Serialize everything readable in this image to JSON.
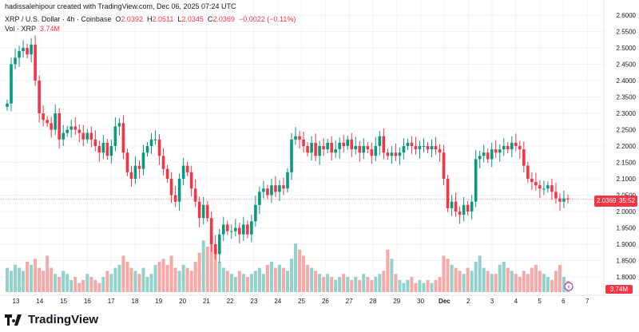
{
  "watermark": "hadissalehipour created with TradingView.com, Dec 06, 2025 07:24 UTC",
  "legend": {
    "symbol": "XRP / U.S. Dollar · 4h · Coinbase",
    "o_label": "O",
    "o": "2.0392",
    "h_label": "H",
    "h": "2.0511",
    "l_label": "L",
    "l": "2.0345",
    "c_label": "C",
    "c": "2.0369",
    "change": "−0.0022 (−0.11%)",
    "vol_label": "Vol · XRP",
    "vol": "3.74M"
  },
  "last_price": "2.0369",
  "countdown": "35:52",
  "last_volume": "3.74M",
  "footer_brand": "TradingView",
  "colors": {
    "up": "#089981",
    "down": "#f23645",
    "up_vol": "#92d2cc",
    "down_vol": "#f7a9a7",
    "grid": "#f0f3fa"
  },
  "chart_data": {
    "type": "candlestick",
    "interval": "4h",
    "y_ticks": [
      "2.6000",
      "2.5500",
      "2.5000",
      "2.4500",
      "2.4000",
      "2.3500",
      "2.3000",
      "2.2500",
      "2.2000",
      "2.1500",
      "2.1000",
      "2.0500",
      "2.0000",
      "1.9500",
      "1.9000",
      "1.8500",
      "1.8000"
    ],
    "ylim": [
      1.78,
      2.6
    ],
    "x_ticks": [
      "13",
      "14",
      "15",
      "16",
      "17",
      "18",
      "19",
      "20",
      "21",
      "22",
      "23",
      "24",
      "25",
      "26",
      "27",
      "28",
      "29",
      "30",
      "Dec",
      "2",
      "3",
      "4",
      "5",
      "6",
      "7"
    ],
    "first_open": 2.32,
    "closes": [
      2.33,
      2.45,
      2.47,
      2.49,
      2.5,
      2.48,
      2.51,
      2.4,
      2.3,
      2.28,
      2.27,
      2.25,
      2.3,
      2.22,
      2.24,
      2.25,
      2.26,
      2.25,
      2.24,
      2.22,
      2.24,
      2.22,
      2.2,
      2.18,
      2.21,
      2.17,
      2.2,
      2.26,
      2.27,
      2.18,
      2.12,
      2.1,
      2.14,
      2.13,
      2.18,
      2.2,
      2.22,
      2.22,
      2.17,
      2.13,
      2.1,
      2.05,
      2.03,
      2.1,
      2.14,
      2.12,
      2.07,
      2.03,
      1.98,
      2.02,
      1.98,
      1.9,
      1.87,
      1.93,
      1.96,
      1.94,
      1.94,
      1.95,
      1.93,
      1.96,
      1.93,
      1.97,
      2.02,
      2.06,
      2.07,
      2.05,
      2.08,
      2.06,
      2.08,
      2.07,
      2.12,
      2.22,
      2.23,
      2.22,
      2.2,
      2.18,
      2.21,
      2.17,
      2.2,
      2.19,
      2.21,
      2.18,
      2.19,
      2.21,
      2.2,
      2.22,
      2.19,
      2.2,
      2.18,
      2.2,
      2.19,
      2.17,
      2.2,
      2.23,
      2.18,
      2.17,
      2.18,
      2.17,
      2.18,
      2.2,
      2.21,
      2.2,
      2.19,
      2.2,
      2.2,
      2.19,
      2.2,
      2.19,
      2.18,
      2.1,
      2.01,
      2.03,
      2.0,
      1.99,
      2.02,
      2.0,
      2.03,
      2.16,
      2.17,
      2.18,
      2.16,
      2.19,
      2.18,
      2.19,
      2.2,
      2.19,
      2.21,
      2.2,
      2.19,
      2.14,
      2.1,
      2.09,
      2.08,
      2.07,
      2.07,
      2.08,
      2.06,
      2.04,
      2.03,
      2.04,
      2.0369
    ],
    "volumes_m": [
      8,
      7,
      9,
      8,
      7,
      10,
      9,
      11,
      8,
      7,
      12,
      8,
      6,
      5,
      7,
      6,
      4,
      5,
      3,
      4,
      6,
      5,
      4,
      3,
      5,
      7,
      6,
      8,
      9,
      12,
      10,
      8,
      7,
      6,
      8,
      5,
      6,
      9,
      10,
      11,
      9,
      12,
      8,
      7,
      9,
      8,
      7,
      10,
      13,
      17,
      15,
      18,
      14,
      10,
      8,
      7,
      6,
      5,
      7,
      6,
      5,
      6,
      7,
      8,
      6,
      9,
      10,
      8,
      9,
      8,
      7,
      11,
      16,
      14,
      12,
      9,
      8,
      7,
      6,
      5,
      6,
      5,
      4,
      5,
      6,
      5,
      4,
      5,
      4,
      6,
      5,
      4,
      5,
      6,
      7,
      14,
      11,
      6,
      4,
      3,
      4,
      5,
      3,
      4,
      3,
      4,
      3,
      4,
      5,
      12,
      11,
      9,
      8,
      7,
      6,
      8,
      7,
      10,
      12,
      8,
      7,
      6,
      6,
      9,
      10,
      8,
      7,
      6,
      5,
      7,
      6,
      8,
      9,
      7,
      6,
      5,
      4,
      7,
      9,
      5,
      3.74
    ]
  }
}
